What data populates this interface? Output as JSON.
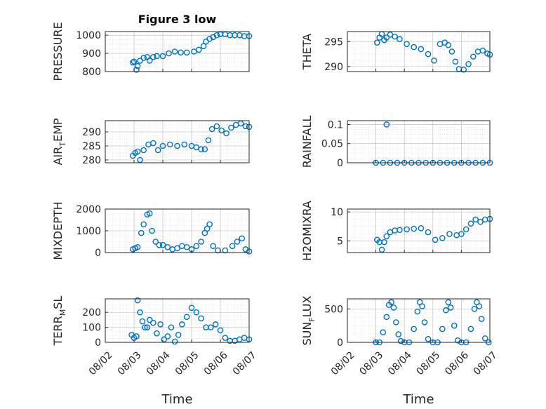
{
  "chart_data": [
    {
      "id": "p1",
      "type": "scatter",
      "title": "Figure 3 low",
      "ylabel_main": "PRESSURE",
      "ylabel_sub": "",
      "ylim": [
        800,
        1020
      ],
      "yticks": [
        800,
        900,
        1000
      ],
      "x": [
        "08/02 23:00",
        "08/03 00:00",
        "08/03 02:00",
        "08/03 03:00",
        "08/03 05:00",
        "08/03 08:00",
        "08/03 11:00",
        "08/03 13:00",
        "08/03 16:00",
        "08/03 19:00",
        "08/04 00:00",
        "08/04 05:00",
        "08/04 10:00",
        "08/04 15:00",
        "08/04 20:00",
        "08/05 02:00",
        "08/05 06:00",
        "08/05 10:00",
        "08/05 12:00",
        "08/05 15:00",
        "08/05 18:00",
        "08/05 21:00",
        "08/06 00:00",
        "08/06 04:00",
        "08/06 08:00",
        "08/06 12:00",
        "08/06 16:00",
        "08/06 20:00",
        "08/07 00:00"
      ],
      "y": [
        850,
        855,
        810,
        830,
        860,
        875,
        880,
        860,
        880,
        885,
        885,
        900,
        910,
        905,
        905,
        910,
        920,
        940,
        965,
        980,
        990,
        1000,
        1005,
        1005,
        1000,
        1000,
        1000,
        995,
        995
      ]
    },
    {
      "id": "p2",
      "type": "scatter",
      "title": "",
      "ylabel_main": "THETA",
      "ylabel_sub": "",
      "ylim": [
        289,
        297
      ],
      "yticks": [
        290,
        295
      ],
      "x": [
        "08/03 01:00",
        "08/03 03:00",
        "08/03 05:00",
        "08/03 07:00",
        "08/03 09:00",
        "08/03 12:00",
        "08/03 16:00",
        "08/03 20:00",
        "08/04 02:00",
        "08/04 08:00",
        "08/04 14:00",
        "08/04 20:00",
        "08/05 01:00",
        "08/05 06:00",
        "08/05 10:00",
        "08/05 13:00",
        "08/05 16:00",
        "08/05 19:00",
        "08/05 22:00",
        "08/06 02:00",
        "08/06 06:00",
        "08/06 10:00",
        "08/06 14:00",
        "08/06 18:00",
        "08/06 22:00",
        "08/07 00:00"
      ],
      "y": [
        294.8,
        295.8,
        296.5,
        295.3,
        295.8,
        296.4,
        296.0,
        295.5,
        294.5,
        293.9,
        293.5,
        292.5,
        291.2,
        294.5,
        294.8,
        294.3,
        293.0,
        291.0,
        289.5,
        289.4,
        290.5,
        292.0,
        293.0,
        293.2,
        292.6,
        292.4
      ]
    },
    {
      "id": "p3",
      "type": "scatter",
      "title": "",
      "ylabel_main": "AIR",
      "ylabel_sub": "T",
      "ylabel_tail": "EMP",
      "ylim": [
        279,
        294
      ],
      "yticks": [
        280,
        285,
        290
      ],
      "x": [
        "08/02 23:00",
        "08/03 01:00",
        "08/03 03:00",
        "08/03 05:00",
        "08/03 08:00",
        "08/03 12:00",
        "08/03 16:00",
        "08/03 20:00",
        "08/04 00:00",
        "08/04 06:00",
        "08/04 12:00",
        "08/04 18:00",
        "08/05 00:00",
        "08/05 04:00",
        "08/05 08:00",
        "08/05 11:00",
        "08/05 14:00",
        "08/05 17:00",
        "08/05 21:00",
        "08/06 01:00",
        "08/06 05:00",
        "08/06 09:00",
        "08/06 13:00",
        "08/06 17:00",
        "08/06 21:00",
        "08/07 00:00"
      ],
      "y": [
        281.5,
        282.5,
        283.0,
        280.0,
        283.5,
        285.5,
        286.0,
        283.5,
        285.0,
        285.5,
        285.0,
        285.5,
        285.0,
        284.5,
        283.8,
        283.8,
        287.0,
        291.0,
        292.0,
        290.5,
        289.5,
        291.5,
        292.5,
        293.0,
        292.0,
        291.8
      ]
    },
    {
      "id": "p4",
      "type": "scatter",
      "title": "",
      "ylabel_main": "RAINFALL",
      "ylabel_sub": "",
      "ylim": [
        0,
        0.11
      ],
      "yticks": [
        0,
        0.05,
        0.1
      ],
      "x": [
        "08/03 00:00",
        "08/03 06:00",
        "08/03 12:00",
        "08/03 18:00",
        "08/04 00:00",
        "08/04 06:00",
        "08/04 12:00",
        "08/04 18:00",
        "08/05 00:00",
        "08/05 06:00",
        "08/05 12:00",
        "08/05 18:00",
        "08/06 00:00",
        "08/06 06:00",
        "08/06 12:00",
        "08/06 18:00",
        "08/07 00:00",
        "08/03 09:00"
      ],
      "y": [
        0,
        0,
        0,
        0,
        0,
        0,
        0,
        0,
        0,
        0,
        0,
        0,
        0,
        0,
        0,
        0,
        0,
        0.1
      ]
    },
    {
      "id": "p5",
      "type": "scatter",
      "title": "",
      "ylabel_main": "MIXDEPTH",
      "ylabel_sub": "",
      "ylim": [
        0,
        2000
      ],
      "yticks": [
        0,
        1000,
        2000
      ],
      "x": [
        "08/02 23:00",
        "08/03 01:00",
        "08/03 03:00",
        "08/03 06:00",
        "08/03 08:00",
        "08/03 11:00",
        "08/03 13:00",
        "08/03 15:00",
        "08/03 18:00",
        "08/03 21:00",
        "08/04 00:00",
        "08/04 04:00",
        "08/04 08:00",
        "08/04 12:00",
        "08/04 16:00",
        "08/04 20:00",
        "08/05 00:00",
        "08/05 04:00",
        "08/05 08:00",
        "08/05 11:00",
        "08/05 13:00",
        "08/05 15:00",
        "08/05 18:00",
        "08/05 22:00",
        "08/06 04:00",
        "08/06 10:00",
        "08/06 14:00",
        "08/06 18:00",
        "08/06 21:00",
        "08/07 00:00"
      ],
      "y": [
        150,
        200,
        250,
        900,
        1300,
        1750,
        1800,
        1000,
        500,
        350,
        350,
        250,
        150,
        200,
        300,
        250,
        150,
        300,
        500,
        900,
        1100,
        1300,
        300,
        100,
        100,
        300,
        500,
        650,
        150,
        50
      ]
    },
    {
      "id": "p6",
      "type": "scatter",
      "title": "",
      "ylabel_main": "H2OMIXRA",
      "ylabel_sub": "",
      "ylim": [
        3,
        10.5
      ],
      "yticks": [
        5,
        10
      ],
      "x": [
        "08/03 01:00",
        "08/03 03:00",
        "08/03 05:00",
        "08/03 07:00",
        "08/03 09:00",
        "08/03 12:00",
        "08/03 16:00",
        "08/03 20:00",
        "08/04 02:00",
        "08/04 08:00",
        "08/04 14:00",
        "08/04 20:00",
        "08/05 02:00",
        "08/05 08:00",
        "08/05 14:00",
        "08/05 20:00",
        "08/06 00:00",
        "08/06 04:00",
        "08/06 08:00",
        "08/06 12:00",
        "08/06 16:00",
        "08/06 20:00",
        "08/07 00:00"
      ],
      "y": [
        5.2,
        4.8,
        3.5,
        4.8,
        5.8,
        6.5,
        6.8,
        6.9,
        7.0,
        7.1,
        7.2,
        6.5,
        5.2,
        5.5,
        6.2,
        6.0,
        6.2,
        7.0,
        8.0,
        8.7,
        8.3,
        8.7,
        8.8
      ]
    },
    {
      "id": "p7",
      "type": "scatter",
      "title": "",
      "ylabel_main": "TERR",
      "ylabel_sub": "M",
      "ylabel_tail": "SL",
      "ylim": [
        0,
        290
      ],
      "yticks": [
        0,
        100,
        200
      ],
      "x": [
        "08/02 22:00",
        "08/03 00:00",
        "08/03 02:00",
        "08/03 03:00",
        "08/03 05:00",
        "08/03 07:00",
        "08/03 09:00",
        "08/03 11:00",
        "08/03 13:00",
        "08/03 16:00",
        "08/03 19:00",
        "08/03 22:00",
        "08/04 01:00",
        "08/04 04:00",
        "08/04 07:00",
        "08/04 10:00",
        "08/04 13:00",
        "08/04 16:00",
        "08/04 20:00",
        "08/05 00:00",
        "08/05 04:00",
        "08/05 08:00",
        "08/05 12:00",
        "08/05 16:00",
        "08/05 20:00",
        "08/06 00:00",
        "08/06 04:00",
        "08/06 08:00",
        "08/06 12:00",
        "08/06 16:00",
        "08/06 20:00",
        "08/07 00:00"
      ],
      "y": [
        50,
        30,
        40,
        280,
        200,
        140,
        100,
        100,
        150,
        130,
        60,
        120,
        20,
        40,
        100,
        5,
        50,
        120,
        170,
        230,
        200,
        160,
        100,
        100,
        120,
        80,
        30,
        10,
        10,
        20,
        30,
        20
      ]
    },
    {
      "id": "p8",
      "type": "scatter",
      "title": "",
      "ylabel_main": "SUN",
      "ylabel_sub": "F",
      "ylabel_tail": "LUX",
      "ylim": [
        0,
        650
      ],
      "yticks": [
        0,
        500
      ],
      "x": [
        "08/03 00:00",
        "08/03 03:00",
        "08/03 06:00",
        "08/03 09:00",
        "08/03 11:00",
        "08/03 13:00",
        "08/03 15:00",
        "08/03 17:00",
        "08/03 19:00",
        "08/03 21:00",
        "08/04 00:00",
        "08/04 04:00",
        "08/04 08:00",
        "08/04 11:00",
        "08/04 13:00",
        "08/04 15:00",
        "08/04 17:00",
        "08/04 20:00",
        "08/05 00:00",
        "08/05 04:00",
        "08/05 08:00",
        "08/05 11:00",
        "08/05 13:00",
        "08/05 15:00",
        "08/05 18:00",
        "08/05 21:00",
        "08/06 00:00",
        "08/06 04:00",
        "08/06 08:00",
        "08/06 11:00",
        "08/06 13:00",
        "08/06 15:00",
        "08/06 17:00",
        "08/06 20:00",
        "08/06 23:00"
      ],
      "y": [
        0,
        0,
        150,
        380,
        560,
        600,
        520,
        300,
        120,
        20,
        0,
        0,
        200,
        460,
        600,
        540,
        300,
        50,
        0,
        0,
        200,
        480,
        600,
        520,
        250,
        30,
        0,
        0,
        200,
        500,
        600,
        540,
        350,
        60,
        0
      ]
    }
  ],
  "x_axis": {
    "label": "Time",
    "ticks": [
      "08/02",
      "08/03",
      "08/04",
      "08/05",
      "08/06",
      "08/07"
    ]
  },
  "colors": {
    "marker": "#0072bd",
    "axis": "#262626"
  }
}
